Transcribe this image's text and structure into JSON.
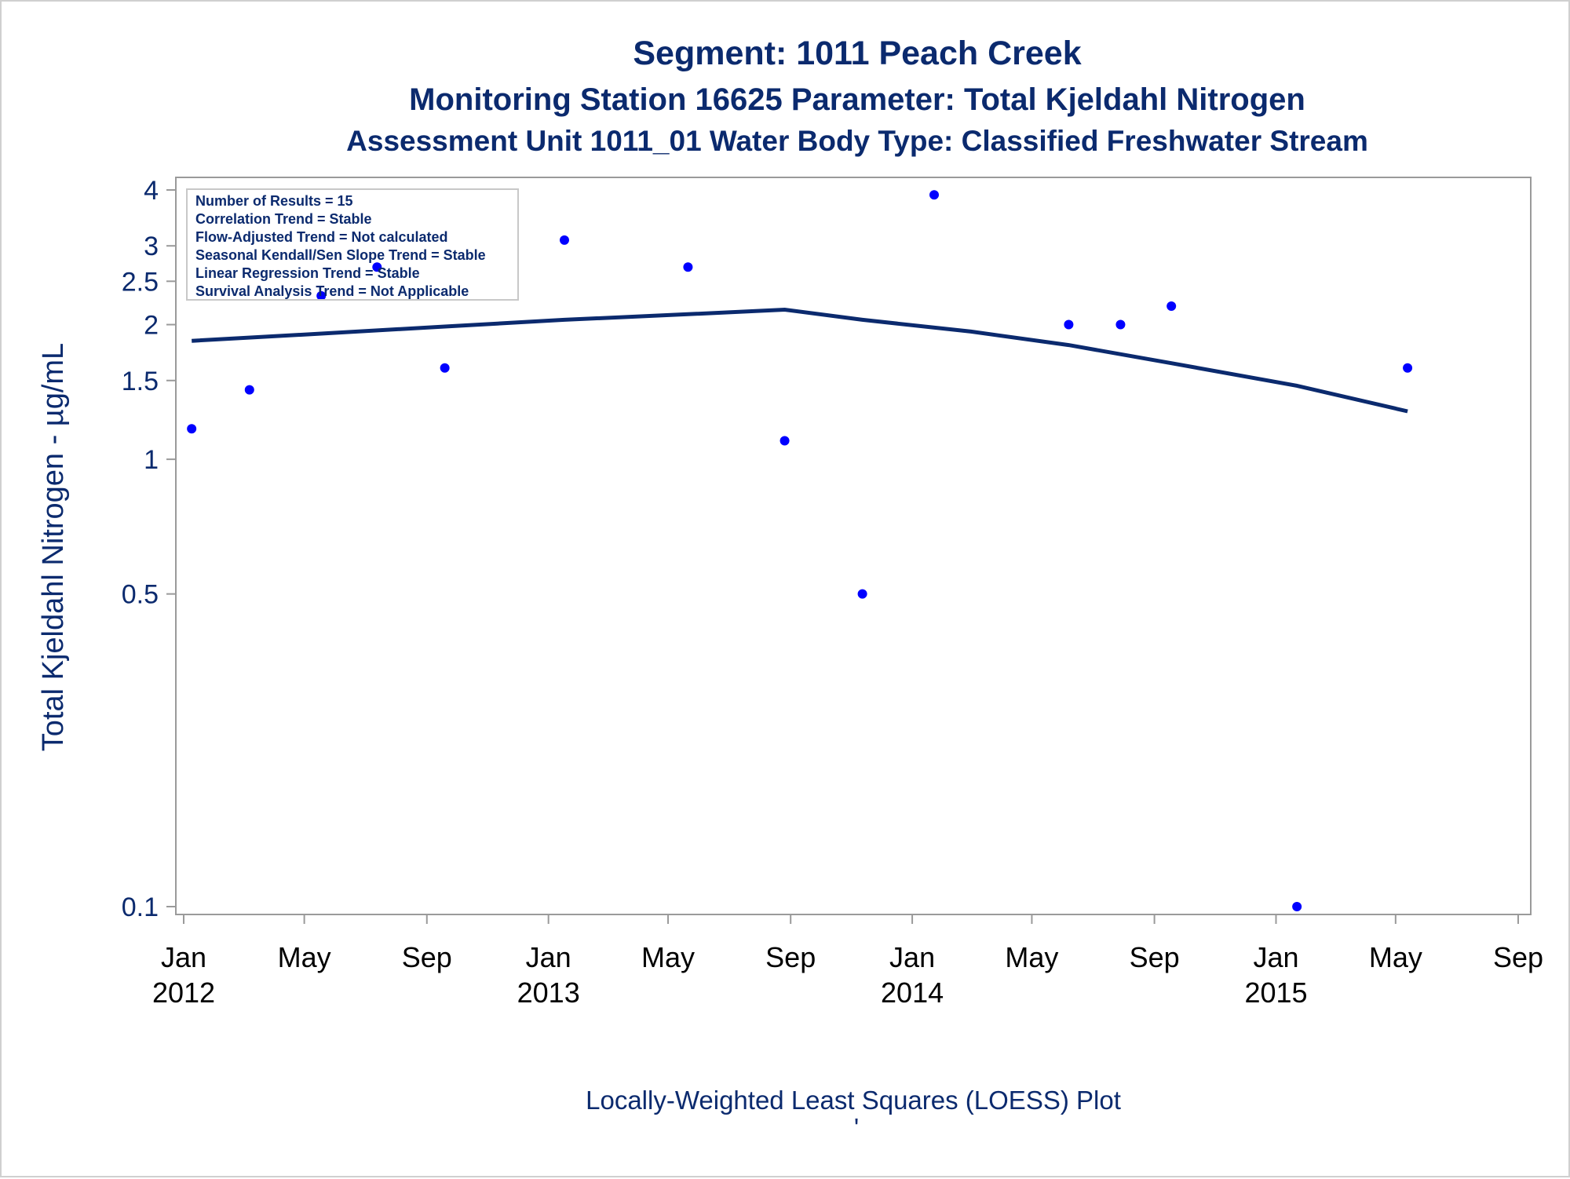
{
  "titles": {
    "line1": "Segment: 1011  Peach Creek",
    "line2": "Monitoring Station 16625 Parameter: Total Kjeldahl Nitrogen",
    "line3": "Assessment Unit 1011_01   Water Body Type: Classified Freshwater Stream"
  },
  "stats_box": {
    "lines": [
      "Number of Results = 15",
      "Correlation Trend = Stable",
      "Flow-Adjusted Trend = Not calculated",
      "Seasonal Kendall/Sen Slope Trend = Stable",
      "Linear Regression Trend = Stable",
      "Survival Analysis Trend = Not Applicable"
    ]
  },
  "footnote": "Locally-Weighted Least Squares (LOESS) Plot",
  "colors": {
    "title": "#0b2a6e",
    "points": "#0000ff",
    "loess_line": "#0b2a6e",
    "axis": "#9a9a9a"
  },
  "chart_data": {
    "type": "scatter",
    "ylabel": "Total Kjeldahl Nitrogen -  µg/mL",
    "xlabel": "",
    "y_scale": "log",
    "ylim": [
      0.1,
      4
    ],
    "xlim": [
      "2011-12-20",
      "2015-09-10"
    ],
    "y_ticks": [
      {
        "value": 0.1,
        "label": "0.1"
      },
      {
        "value": 0.5,
        "label": "0.5"
      },
      {
        "value": 1,
        "label": "1"
      },
      {
        "value": 1.5,
        "label": "1.5"
      },
      {
        "value": 2,
        "label": "2"
      },
      {
        "value": 2.5,
        "label": "2.5"
      },
      {
        "value": 3,
        "label": "3"
      },
      {
        "value": 4,
        "label": "4"
      }
    ],
    "x_ticks": [
      {
        "date": "2012-01-01",
        "label": "Jan",
        "year": "2012"
      },
      {
        "date": "2012-05-01",
        "label": "May",
        "year": ""
      },
      {
        "date": "2012-09-01",
        "label": "Sep",
        "year": ""
      },
      {
        "date": "2013-01-01",
        "label": "Jan",
        "year": "2013"
      },
      {
        "date": "2013-05-01",
        "label": "May",
        "year": ""
      },
      {
        "date": "2013-09-01",
        "label": "Sep",
        "year": ""
      },
      {
        "date": "2014-01-01",
        "label": "Jan",
        "year": "2014"
      },
      {
        "date": "2014-05-01",
        "label": "May",
        "year": ""
      },
      {
        "date": "2014-09-01",
        "label": "Sep",
        "year": ""
      },
      {
        "date": "2015-01-01",
        "label": "Jan",
        "year": "2015"
      },
      {
        "date": "2015-05-01",
        "label": "May",
        "year": ""
      },
      {
        "date": "2015-09-01",
        "label": "Sep",
        "year": ""
      }
    ],
    "series": [
      {
        "type": "scatter",
        "points": [
          {
            "x": "2012-01-09",
            "y": 1.17
          },
          {
            "x": "2012-03-07",
            "y": 1.43
          },
          {
            "x": "2012-05-18",
            "y": 2.32
          },
          {
            "x": "2012-07-13",
            "y": 2.69
          },
          {
            "x": "2012-09-19",
            "y": 1.6
          },
          {
            "x": "2013-01-17",
            "y": 3.09
          },
          {
            "x": "2013-05-21",
            "y": 2.69
          },
          {
            "x": "2013-08-26",
            "y": 1.1
          },
          {
            "x": "2013-11-12",
            "y": 0.5
          },
          {
            "x": "2014-01-23",
            "y": 3.9
          },
          {
            "x": "2014-06-07",
            "y": 2.0
          },
          {
            "x": "2014-07-29",
            "y": 2.0
          },
          {
            "x": "2014-09-18",
            "y": 2.2
          },
          {
            "x": "2015-01-22",
            "y": 0.1
          },
          {
            "x": "2015-05-13",
            "y": 1.6
          }
        ]
      },
      {
        "type": "line",
        "points": [
          {
            "x": "2012-01-09",
            "y": 1.84
          },
          {
            "x": "2012-05-18",
            "y": 1.91
          },
          {
            "x": "2012-09-19",
            "y": 1.98
          },
          {
            "x": "2013-01-17",
            "y": 2.05
          },
          {
            "x": "2013-05-21",
            "y": 2.11
          },
          {
            "x": "2013-08-26",
            "y": 2.16
          },
          {
            "x": "2013-11-12",
            "y": 2.05
          },
          {
            "x": "2014-03-01",
            "y": 1.93
          },
          {
            "x": "2014-06-07",
            "y": 1.8
          },
          {
            "x": "2014-09-18",
            "y": 1.64
          },
          {
            "x": "2015-01-22",
            "y": 1.46
          },
          {
            "x": "2015-05-13",
            "y": 1.28
          }
        ]
      }
    ]
  }
}
